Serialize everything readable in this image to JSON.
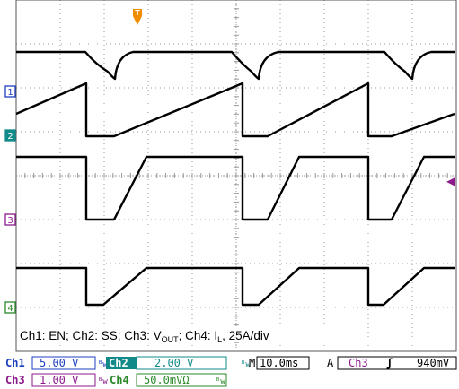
{
  "trigger": {
    "marker_label": "T",
    "level_marker_label": "◀",
    "level_color": "#8b1a8b",
    "marker_color": "#f08c00"
  },
  "channels": [
    {
      "id": "1",
      "label": "1",
      "color": "#1f3fbf",
      "fill": "#ffffff"
    },
    {
      "id": "2",
      "label": "2",
      "color": "#138a8a",
      "fill": "#138a8a"
    },
    {
      "id": "3",
      "label": "3",
      "color": "#8b1a8b",
      "fill": "#ffffff"
    },
    {
      "id": "4",
      "label": "4",
      "color": "#2a8a2a",
      "fill": "#ffffff"
    }
  ],
  "annotation": {
    "prefix": "Ch1: EN; Ch2: SS; Ch3: V",
    "vout_sub": "OUT",
    "middle": "; Ch4: I",
    "il_sub": "L",
    "suffix": ", 25A/div"
  },
  "status": {
    "ch1_label": "Ch1",
    "ch1_value": "5.00 V",
    "ch2_label": "Ch2",
    "ch2_value": "2.00 V",
    "ch3_label": "Ch3",
    "ch3_value": "1.00 V",
    "ch4_label": "Ch4",
    "ch4_value": "50.0mVΩ",
    "bw_mark": "ᴮw",
    "timebase_label": "M",
    "timebase_value": "10.0ms",
    "acq_mode": "A",
    "trigger_source": "Ch3",
    "trigger_slope": "ʃ",
    "trigger_level": "940mV"
  }
}
